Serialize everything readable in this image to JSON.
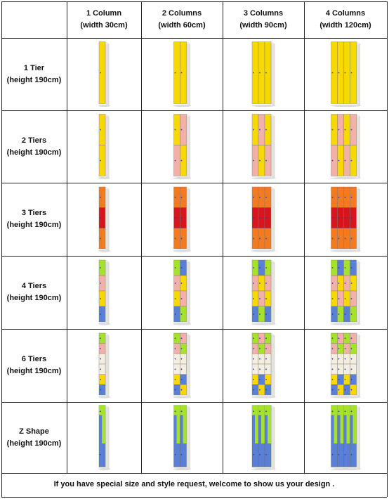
{
  "columns": [
    {
      "line1": "1 Column",
      "line2": "(width 30cm)",
      "count": 1
    },
    {
      "line1": "2 Columns",
      "line2": "(width 60cm)",
      "count": 2
    },
    {
      "line1": "3 Columns",
      "line2": "(width 90cm)",
      "count": 3
    },
    {
      "line1": "4 Columns",
      "line2": "(width 120cm)",
      "count": 4
    }
  ],
  "rows": [
    {
      "line1": "1 Tier",
      "line2": "(height 190cm)",
      "type": "tiers",
      "tiers": 1
    },
    {
      "line1": "2 Tiers",
      "line2": "(height 190cm)",
      "type": "tiers",
      "tiers": 2
    },
    {
      "line1": "3 Tiers",
      "line2": "(height 190cm)",
      "type": "tiers",
      "tiers": 3
    },
    {
      "line1": "4 Tiers",
      "line2": "(height 190cm)",
      "type": "tiers",
      "tiers": 4
    },
    {
      "line1": "6 Tiers",
      "line2": "(height 190cm)",
      "type": "tiers",
      "tiers": 6
    },
    {
      "line1": "Z Shape",
      "line2": "(height 190cm)",
      "type": "z",
      "tiers": 2
    }
  ],
  "footer": "If you have special size and style request, welcome to show us your design .",
  "colors": {
    "yellow": "#f7d800",
    "pink": "#f3b0a8",
    "orange": "#f47a20",
    "red": "#d8141e",
    "lime": "#a6e22a",
    "blue": "#5a7fd6",
    "cream": "#f4eee0",
    "knob": "#2a3fae",
    "grid": "#222222"
  },
  "palettes": {
    "r1": [
      [
        "yellow"
      ]
    ],
    "r2_c1": [
      [
        "yellow"
      ],
      [
        "yellow"
      ]
    ],
    "r2_c2": [
      [
        "yellow",
        "pink"
      ],
      [
        "pink",
        "yellow"
      ]
    ],
    "r2_c3": [
      [
        "yellow",
        "pink",
        "yellow"
      ],
      [
        "pink",
        "yellow",
        "pink"
      ]
    ],
    "r2_c4": [
      [
        "yellow",
        "pink",
        "yellow",
        "pink"
      ],
      [
        "pink",
        "yellow",
        "pink",
        "yellow"
      ]
    ],
    "r3": [
      [
        "orange"
      ],
      [
        "red"
      ],
      [
        "orange"
      ]
    ],
    "r4": [
      [
        "lime",
        "blue",
        "lime",
        "blue"
      ],
      [
        "pink",
        "yellow",
        "pink",
        "yellow"
      ],
      [
        "yellow",
        "pink",
        "yellow",
        "pink"
      ],
      [
        "blue",
        "lime",
        "blue",
        "lime"
      ]
    ],
    "r6": [
      [
        "lime",
        "pink",
        "lime",
        "pink"
      ],
      [
        "pink",
        "lime",
        "pink",
        "lime"
      ],
      [
        "cream",
        "cream",
        "cream",
        "cream"
      ],
      [
        "cream",
        "cream",
        "cream",
        "cream"
      ],
      [
        "yellow",
        "blue",
        "yellow",
        "blue"
      ],
      [
        "blue",
        "yellow",
        "blue",
        "yellow"
      ]
    ],
    "rz": [
      "lime",
      "blue"
    ]
  }
}
